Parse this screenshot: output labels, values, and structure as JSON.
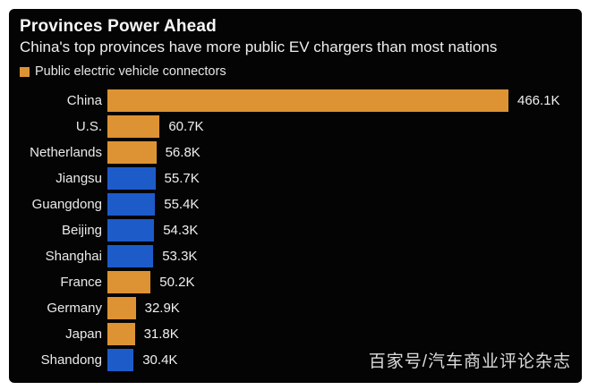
{
  "chart_data": {
    "type": "bar",
    "orientation": "horizontal",
    "title": "Provinces Power Ahead",
    "subtitle": "China's top provinces have more public EV chargers than most nations",
    "legend": [
      {
        "label": "Public electric vehicle connectors",
        "color": "#DD9333"
      }
    ],
    "legend_position": "top-left",
    "grid": false,
    "xlim": [
      0,
      466.1
    ],
    "unit": "K",
    "categories": [
      "China",
      "U.S.",
      "Netherlands",
      "Jiangsu",
      "Guangdong",
      "Beijing",
      "Shanghai",
      "France",
      "Germany",
      "Japan",
      "Shandong"
    ],
    "series": [
      {
        "name": "Public electric vehicle connectors",
        "values": [
          466.1,
          60.7,
          56.8,
          55.7,
          55.4,
          54.3,
          53.3,
          50.2,
          32.9,
          31.8,
          30.4
        ]
      }
    ],
    "value_labels": [
      "466.1K",
      "60.7K",
      "56.8K",
      "55.7K",
      "55.4K",
      "54.3K",
      "53.3K",
      "50.2K",
      "32.9K",
      "31.8K",
      "30.4K"
    ],
    "region_types": [
      "nation",
      "nation",
      "nation",
      "province",
      "province",
      "province",
      "province",
      "nation",
      "nation",
      "nation",
      "province"
    ],
    "colors": {
      "nation": "#DD9333",
      "province": "#1D5BC9"
    },
    "background_color": "#040404",
    "text_color": "#F0F0F0"
  },
  "watermark": "百家号/汽车商业评论杂志"
}
